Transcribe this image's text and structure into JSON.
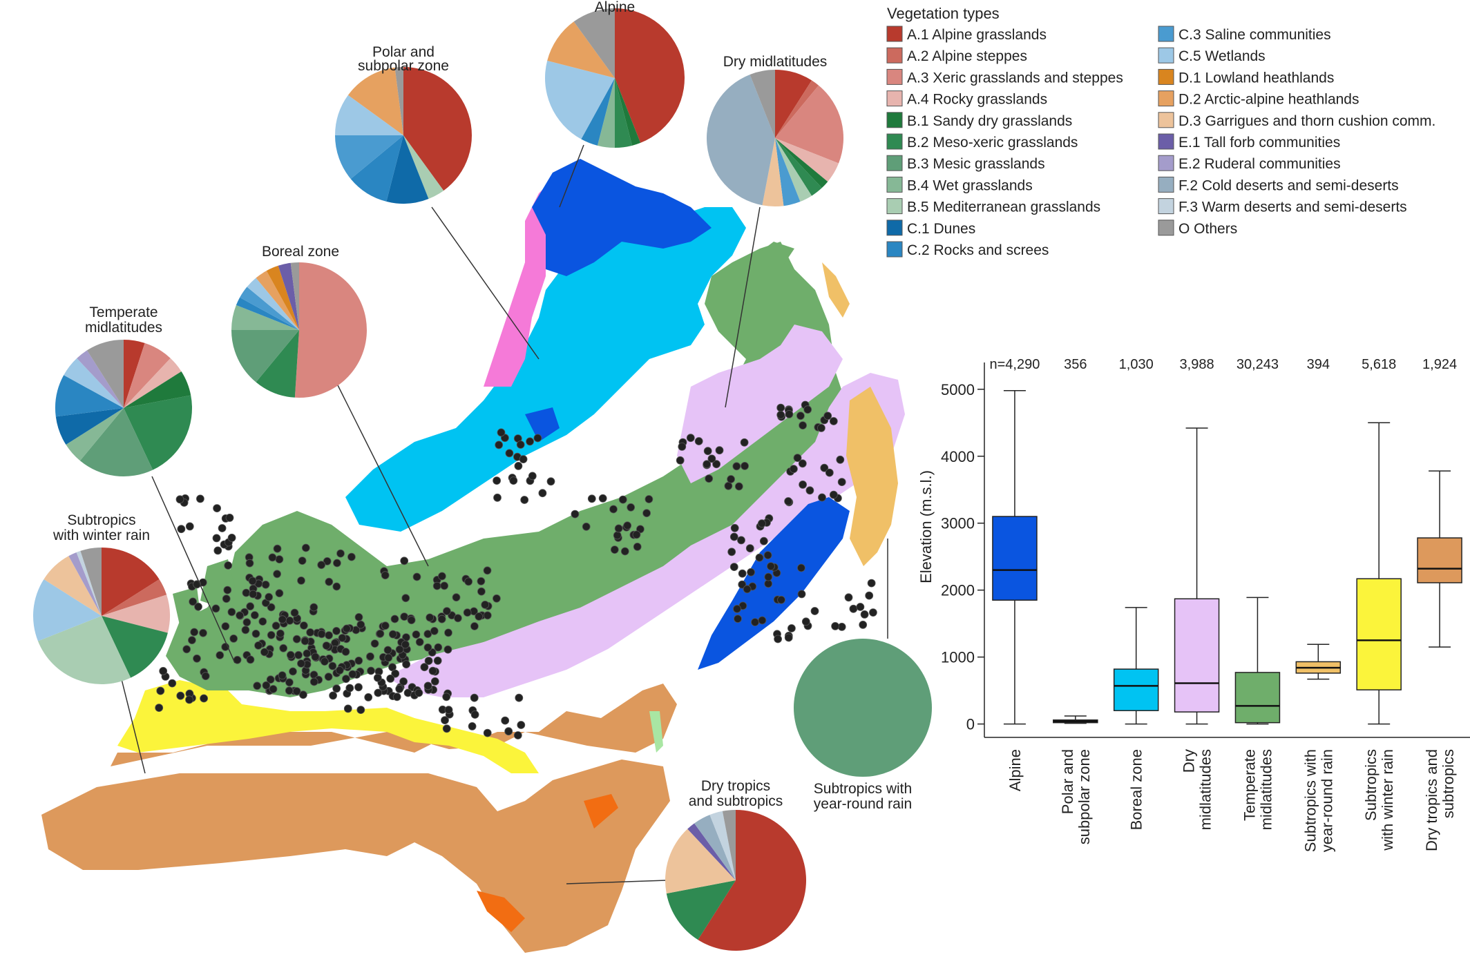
{
  "legend": {
    "title": "Vegetation types",
    "items": [
      {
        "code": "A.1",
        "label": "A.1 Alpine grasslands",
        "color": "#b83a2d"
      },
      {
        "code": "A.2",
        "label": "A.2 Alpine steppes",
        "color": "#cc6a5e"
      },
      {
        "code": "A.3",
        "label": "A.3 Xeric grasslands and steppes",
        "color": "#d9867f"
      },
      {
        "code": "A.4",
        "label": "A.4 Rocky grasslands",
        "color": "#e7b4ae"
      },
      {
        "code": "B.1",
        "label": "B.1 Sandy dry grasslands",
        "color": "#1f7a3c"
      },
      {
        "code": "B.2",
        "label": "B.2 Meso-xeric grasslands",
        "color": "#2f8a52"
      },
      {
        "code": "B.3",
        "label": "B.3 Mesic grasslands",
        "color": "#5f9e78"
      },
      {
        "code": "B.4",
        "label": "B.4 Wet grasslands",
        "color": "#86b896"
      },
      {
        "code": "B.5",
        "label": "B.5 Mediterranean grasslands",
        "color": "#a9cdb2"
      },
      {
        "code": "C.1",
        "label": "C.1 Dunes",
        "color": "#0f6aa8"
      },
      {
        "code": "C.2",
        "label": "C.2 Rocks and screes",
        "color": "#2a86c2"
      },
      {
        "code": "C.3",
        "label": "C.3 Saline communities",
        "color": "#4a9bd0"
      },
      {
        "code": "C.5",
        "label": "C.5 Wetlands",
        "color": "#9dc8e6"
      },
      {
        "code": "D.1",
        "label": "D.1 Lowland heathlands",
        "color": "#d9851f"
      },
      {
        "code": "D.2",
        "label": "D.2 Arctic-alpine heathlands",
        "color": "#e6a160"
      },
      {
        "code": "D.3",
        "label": "D.3 Garrigues and thorn cushion comm.",
        "color": "#edc39b"
      },
      {
        "code": "E.1",
        "label": "E.1 Tall forb communities",
        "color": "#6b5ea8"
      },
      {
        "code": "E.2",
        "label": "E.2 Ruderal communities",
        "color": "#a49ccb"
      },
      {
        "code": "F.2",
        "label": "F.2 Cold deserts and semi-deserts",
        "color": "#96aec0"
      },
      {
        "code": "F.3",
        "label": "F.3 Warm deserts and semi-deserts",
        "color": "#c3d3df"
      },
      {
        "code": "O",
        "label": "O Others",
        "color": "#9a9a9a"
      }
    ]
  },
  "map": {
    "zone_colors": {
      "alpine": "#0a55e0",
      "polar": "#f57ad8",
      "boreal": "#00c3f2",
      "dry_mid": "#e6c3f7",
      "temperate": "#6fae6b",
      "sub_yearround": "#f0c067",
      "sub_winter": "#fbf43b",
      "dry_trop": "#dd995c",
      "dry_trop_dark": "#f26d12",
      "dots": "#222222"
    }
  },
  "chart_data": [
    {
      "type": "pie",
      "title": "Alpine",
      "slices": [
        {
          "type": "A.1",
          "value": 44
        },
        {
          "type": "B.1",
          "value": 2
        },
        {
          "type": "B.2",
          "value": 4
        },
        {
          "type": "B.4",
          "value": 4
        },
        {
          "type": "C.2",
          "value": 4
        },
        {
          "type": "C.5",
          "value": 21
        },
        {
          "type": "D.2",
          "value": 11
        },
        {
          "type": "O",
          "value": 10
        }
      ]
    },
    {
      "type": "pie",
      "title": "Polar and subpolar zone",
      "slices": [
        {
          "type": "A.1",
          "value": 40
        },
        {
          "type": "B.5",
          "value": 4
        },
        {
          "type": "C.1",
          "value": 10
        },
        {
          "type": "C.2",
          "value": 10
        },
        {
          "type": "C.3",
          "value": 11
        },
        {
          "type": "C.5",
          "value": 10
        },
        {
          "type": "D.2",
          "value": 13
        },
        {
          "type": "O",
          "value": 2
        }
      ]
    },
    {
      "type": "pie",
      "title": "Dry midlatitudes",
      "slices": [
        {
          "type": "A.1",
          "value": 9
        },
        {
          "type": "A.2",
          "value": 2
        },
        {
          "type": "A.3",
          "value": 20
        },
        {
          "type": "A.4",
          "value": 5
        },
        {
          "type": "B.1",
          "value": 2
        },
        {
          "type": "B.2",
          "value": 3
        },
        {
          "type": "B.5",
          "value": 3
        },
        {
          "type": "C.3",
          "value": 4
        },
        {
          "type": "D.3",
          "value": 5
        },
        {
          "type": "F.2",
          "value": 41
        },
        {
          "type": "O",
          "value": 6
        }
      ]
    },
    {
      "type": "pie",
      "title": "Boreal zone",
      "slices": [
        {
          "type": "A.3",
          "value": 51
        },
        {
          "type": "B.2",
          "value": 10
        },
        {
          "type": "B.3",
          "value": 14
        },
        {
          "type": "B.4",
          "value": 6
        },
        {
          "type": "C.2",
          "value": 2
        },
        {
          "type": "C.3",
          "value": 3
        },
        {
          "type": "C.5",
          "value": 3
        },
        {
          "type": "D.2",
          "value": 3
        },
        {
          "type": "D.1",
          "value": 3
        },
        {
          "type": "E.1",
          "value": 3
        },
        {
          "type": "O",
          "value": 2
        }
      ]
    },
    {
      "type": "pie",
      "title": "Temperate midlatitudes",
      "slices": [
        {
          "type": "A.1",
          "value": 5
        },
        {
          "type": "A.3",
          "value": 7
        },
        {
          "type": "A.4",
          "value": 4
        },
        {
          "type": "B.1",
          "value": 6
        },
        {
          "type": "B.2",
          "value": 21
        },
        {
          "type": "B.3",
          "value": 18
        },
        {
          "type": "B.4",
          "value": 5
        },
        {
          "type": "C.1",
          "value": 7
        },
        {
          "type": "C.2",
          "value": 10
        },
        {
          "type": "C.5",
          "value": 5
        },
        {
          "type": "E.2",
          "value": 3
        },
        {
          "type": "O",
          "value": 9
        }
      ]
    },
    {
      "type": "pie",
      "title": "Subtropics with winter rain",
      "slices": [
        {
          "type": "A.1",
          "value": 16
        },
        {
          "type": "A.2",
          "value": 4
        },
        {
          "type": "A.4",
          "value": 9
        },
        {
          "type": "B.2",
          "value": 14
        },
        {
          "type": "B.5",
          "value": 26
        },
        {
          "type": "C.5",
          "value": 15
        },
        {
          "type": "D.3",
          "value": 8
        },
        {
          "type": "E.2",
          "value": 2
        },
        {
          "type": "F.3",
          "value": 1
        },
        {
          "type": "O",
          "value": 5
        }
      ]
    },
    {
      "type": "pie",
      "title": "Dry tropics and subtropics",
      "slices": [
        {
          "type": "A.1",
          "value": 59
        },
        {
          "type": "B.2",
          "value": 13
        },
        {
          "type": "D.3",
          "value": 16
        },
        {
          "type": "E.1",
          "value": 2
        },
        {
          "type": "F.2",
          "value": 4
        },
        {
          "type": "F.3",
          "value": 3
        },
        {
          "type": "O",
          "value": 3
        }
      ]
    },
    {
      "type": "pie",
      "title": "Subtropics with year-round rain",
      "slices": [
        {
          "type": "B.3",
          "value": 100
        }
      ]
    },
    {
      "type": "box",
      "title": "",
      "ylabel": "Elevation (m.s.l.)",
      "ylim": [
        -200,
        5400
      ],
      "yticks": [
        0,
        1000,
        2000,
        3000,
        4000,
        5000
      ],
      "boxes": [
        {
          "label": "Alpine",
          "n": "n=4,290",
          "color": "#0a55e0",
          "min": 0,
          "q1": 1850,
          "median": 2300,
          "q3": 3100,
          "max": 4980
        },
        {
          "label": "Polar and subpolar zone",
          "n": "356",
          "color": "#f57ad8",
          "min": 10,
          "q1": 20,
          "median": 40,
          "q3": 60,
          "max": 120
        },
        {
          "label": "Boreal zone",
          "n": "1,030",
          "color": "#00c3f2",
          "min": 0,
          "q1": 200,
          "median": 570,
          "q3": 820,
          "max": 1740
        },
        {
          "label": "Dry midlatitudes",
          "n": "3,988",
          "color": "#e6c3f7",
          "min": 0,
          "q1": 180,
          "median": 610,
          "q3": 1870,
          "max": 4420
        },
        {
          "label": "Temperate midlatitudes",
          "n": "30,243",
          "color": "#6fae6b",
          "min": 0,
          "q1": 20,
          "median": 270,
          "q3": 770,
          "max": 1890
        },
        {
          "label": "Subtropics with year-round rain",
          "n": "394",
          "color": "#f0c067",
          "min": 670,
          "q1": 760,
          "median": 840,
          "q3": 930,
          "max": 1190
        },
        {
          "label": "Subtropics with winter rain",
          "n": "5,618",
          "color": "#fbf43b",
          "min": 0,
          "q1": 510,
          "median": 1250,
          "q3": 2170,
          "max": 4500
        },
        {
          "label": "Dry tropics and subtropics",
          "n": "1,924",
          "color": "#dd995c",
          "min": 1150,
          "q1": 2110,
          "median": 2320,
          "q3": 2780,
          "max": 3780
        }
      ]
    }
  ]
}
